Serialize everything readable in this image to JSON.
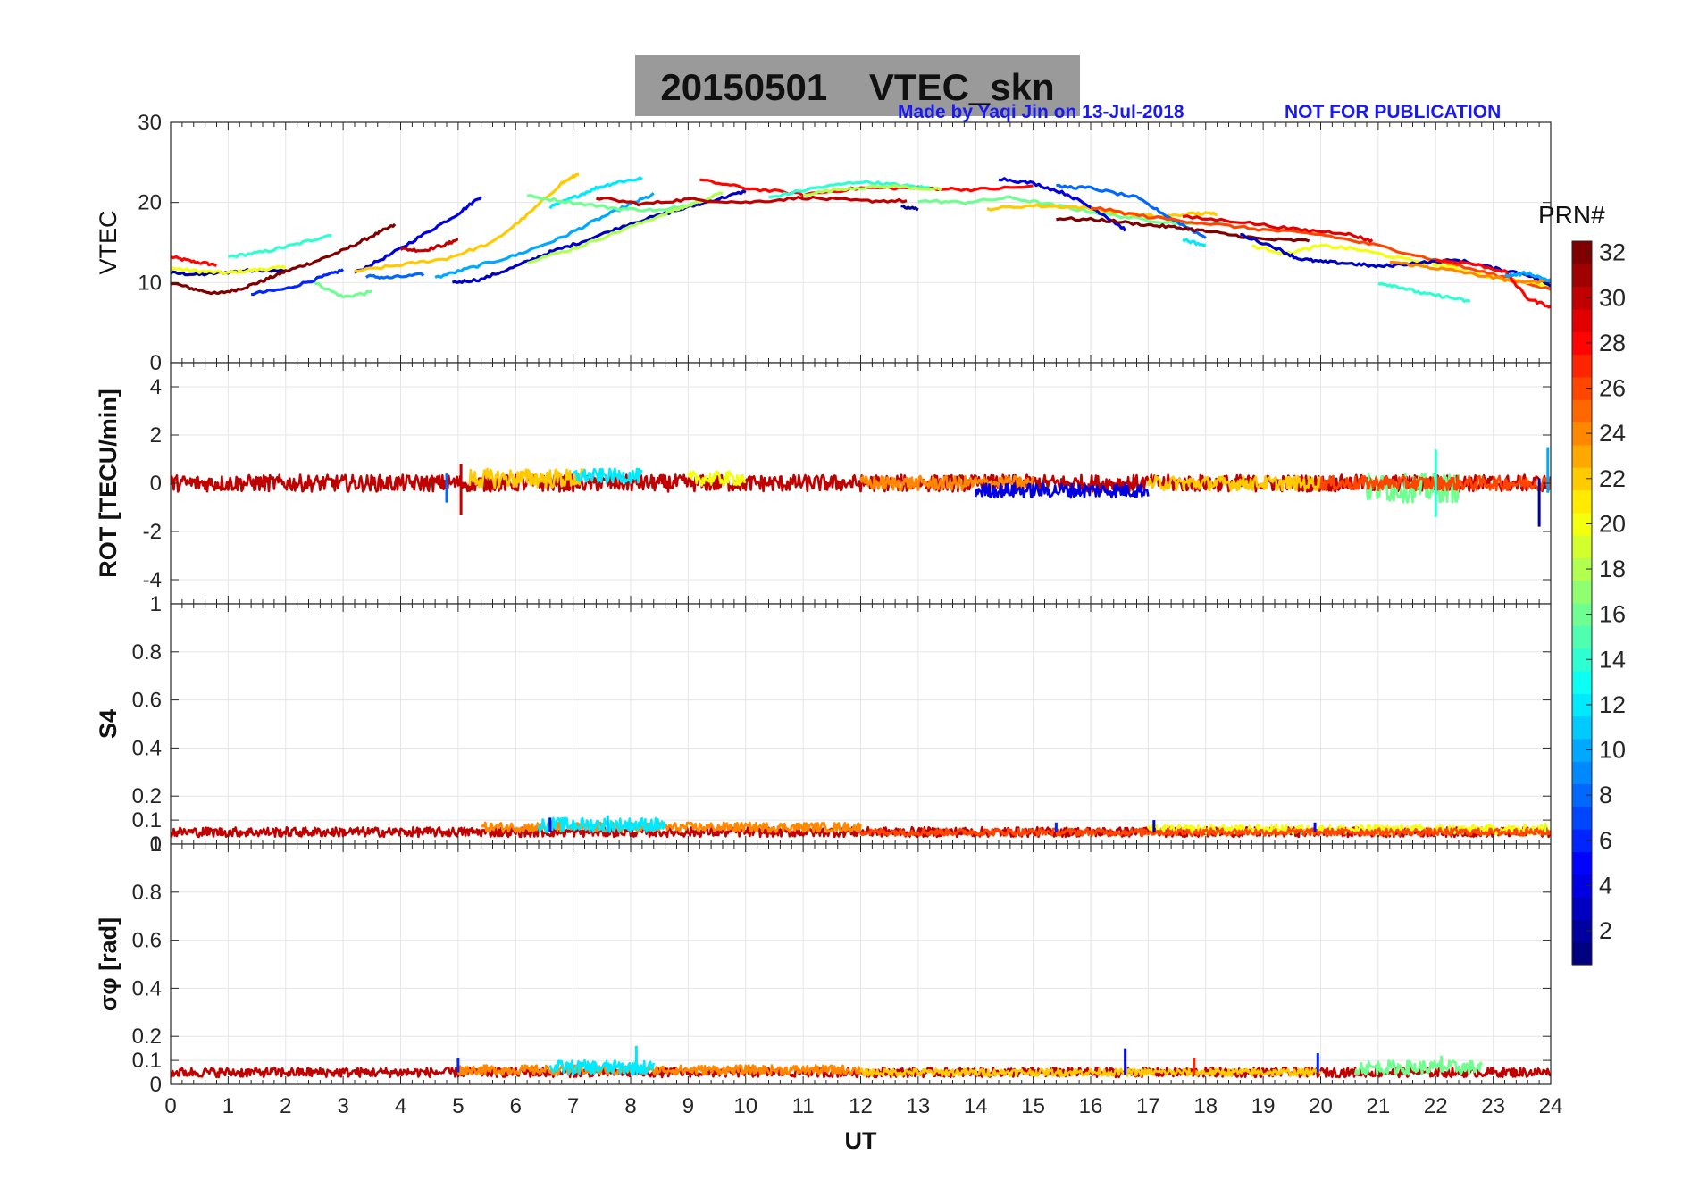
{
  "figure": {
    "title": "20150501    VTEC_skn",
    "credit_left": "Made by Yaqi Jin on 13-Jul-2018",
    "credit_right": "NOT FOR PUBLICATION",
    "xlabel": "UT"
  },
  "colorbar": {
    "label": "PRN#",
    "ticks": [
      2,
      4,
      6,
      8,
      10,
      12,
      14,
      16,
      18,
      20,
      22,
      24,
      26,
      28,
      30,
      32
    ],
    "range": [
      1,
      32
    ],
    "colormap": "jet"
  },
  "chart_data": [
    {
      "type": "line",
      "panel": "vtec",
      "ylabel": "VTEC",
      "xlim": [
        0,
        24
      ],
      "ylim": [
        0,
        30
      ],
      "yticks": [
        0,
        10,
        20,
        30
      ],
      "grid": true,
      "series": [
        {
          "prn": 28,
          "x": [
            0,
            0.4,
            0.8
          ],
          "y": [
            13.2,
            12.6,
            12.2
          ]
        },
        {
          "prn": 2,
          "x": [
            0,
            0.5,
            1.0,
            1.5,
            2.0
          ],
          "y": [
            11.2,
            11.0,
            11.3,
            11.6,
            11.4
          ]
        },
        {
          "prn": 20,
          "x": [
            0,
            0.5,
            1.0,
            1.5,
            2.0
          ],
          "y": [
            11.8,
            11.4,
            11.2,
            11.6,
            11.9
          ]
        },
        {
          "prn": 32,
          "x": [
            0,
            0.4,
            0.8,
            1.2,
            1.6,
            2.0,
            2.5,
            3.0,
            3.5,
            3.9
          ],
          "y": [
            10.0,
            9.2,
            8.6,
            9.2,
            10.2,
            11.4,
            12.6,
            14.0,
            15.8,
            17.2
          ]
        },
        {
          "prn": 14,
          "x": [
            1.0,
            1.6,
            2.2,
            2.8
          ],
          "y": [
            13.2,
            13.8,
            14.8,
            16.0
          ]
        },
        {
          "prn": 16,
          "x": [
            2.5,
            3.0,
            3.5
          ],
          "y": [
            10.0,
            8.2,
            8.8
          ]
        },
        {
          "prn": 6,
          "x": [
            1.4,
            2.0,
            2.6,
            3.0
          ],
          "y": [
            8.6,
            9.2,
            10.6,
            11.6
          ]
        },
        {
          "prn": 4,
          "x": [
            3.2,
            3.8,
            4.4,
            5.0,
            5.4
          ],
          "y": [
            11.2,
            13.4,
            16.0,
            18.6,
            20.8
          ]
        },
        {
          "prn": 30,
          "x": [
            4.0,
            4.4,
            4.8,
            5.0
          ],
          "y": [
            14.2,
            14.0,
            14.8,
            15.4
          ]
        },
        {
          "prn": 8,
          "x": [
            3.4,
            3.8,
            4.4
          ],
          "y": [
            10.8,
            10.6,
            11.0
          ]
        },
        {
          "prn": 3,
          "x": [
            4.9,
            5.4,
            6.0,
            6.6,
            7.2,
            8.0,
            8.8,
            9.5,
            10.0
          ],
          "y": [
            10.0,
            10.4,
            12.0,
            13.8,
            15.2,
            17.4,
            19.0,
            20.4,
            21.4
          ]
        },
        {
          "prn": 10,
          "x": [
            4.6,
            5.2,
            6.0,
            6.8,
            7.4,
            8.0,
            8.4
          ],
          "y": [
            10.6,
            11.8,
            13.4,
            15.6,
            17.8,
            19.8,
            21.0
          ]
        },
        {
          "prn": 22,
          "x": [
            3.2,
            4.0,
            4.8,
            5.6,
            6.2,
            6.8,
            7.1
          ],
          "y": [
            11.4,
            12.2,
            13.0,
            15.0,
            18.4,
            22.4,
            23.6
          ]
        },
        {
          "prn": 12,
          "x": [
            6.6,
            7.0,
            7.4,
            7.8,
            8.2
          ],
          "y": [
            19.4,
            20.6,
            21.8,
            22.6,
            23.0
          ]
        },
        {
          "prn": 16,
          "x": [
            6.2,
            7.0,
            7.8,
            8.6,
            9.2
          ],
          "y": [
            20.8,
            20.0,
            19.2,
            19.0,
            20.2
          ]
        },
        {
          "prn": 18,
          "x": [
            6.2,
            7.0,
            7.8,
            8.6,
            9.0,
            9.6
          ],
          "y": [
            12.6,
            14.2,
            16.4,
            18.6,
            19.6,
            21.2
          ]
        },
        {
          "prn": 30,
          "x": [
            7.4,
            8.2,
            9.0,
            10.0,
            11.0,
            12.0,
            12.8
          ],
          "y": [
            20.6,
            19.8,
            20.4,
            20.0,
            20.6,
            20.2,
            20.2
          ]
        },
        {
          "prn": 28,
          "x": [
            9.2,
            10.0,
            11.0,
            12.0,
            13.0,
            14.0,
            15.0
          ],
          "y": [
            22.8,
            21.8,
            21.0,
            21.8,
            21.8,
            21.6,
            22.0
          ]
        },
        {
          "prn": 14,
          "x": [
            10.4,
            11.2,
            12.0,
            12.6,
            13.2
          ],
          "y": [
            20.6,
            21.8,
            22.6,
            22.2,
            21.8
          ]
        },
        {
          "prn": 18,
          "x": [
            11.0,
            11.8,
            12.6,
            13.4
          ],
          "y": [
            21.0,
            21.8,
            22.0,
            21.6
          ]
        },
        {
          "prn": 2,
          "x": [
            12.7,
            13.0
          ],
          "y": [
            19.4,
            19.2
          ]
        },
        {
          "prn": 16,
          "x": [
            13.0,
            13.8,
            14.6,
            15.4,
            16.2,
            17.0,
            17.8
          ],
          "y": [
            20.2,
            20.0,
            20.6,
            19.6,
            18.6,
            17.8,
            17.2
          ]
        },
        {
          "prn": 22,
          "x": [
            14.2,
            15.0,
            15.8,
            16.6,
            17.2,
            17.8,
            18.2
          ],
          "y": [
            19.2,
            19.6,
            19.4,
            18.6,
            18.2,
            18.6,
            18.6
          ]
        },
        {
          "prn": 4,
          "x": [
            14.4,
            15.0,
            15.6,
            16.2,
            16.6
          ],
          "y": [
            23.0,
            22.4,
            21.0,
            18.6,
            16.6
          ]
        },
        {
          "prn": 8,
          "x": [
            15.4,
            16.0,
            16.8,
            17.4,
            18.0
          ],
          "y": [
            22.0,
            21.8,
            20.6,
            18.0,
            15.6
          ]
        },
        {
          "prn": 32,
          "x": [
            15.4,
            16.2,
            17.0,
            17.6,
            18.2,
            19.0,
            19.8
          ],
          "y": [
            18.0,
            17.8,
            17.2,
            16.8,
            16.2,
            15.4,
            15.2
          ]
        },
        {
          "prn": 26,
          "x": [
            16.0,
            17.0,
            18.0,
            19.0,
            20.0,
            21.0,
            22.0,
            23.0,
            24.0
          ],
          "y": [
            19.4,
            18.2,
            17.4,
            16.6,
            16.0,
            14.6,
            12.8,
            11.0,
            9.2
          ]
        },
        {
          "prn": 29,
          "x": [
            17.6,
            18.6,
            19.6,
            20.4,
            20.9
          ],
          "y": [
            18.2,
            17.6,
            16.6,
            16.2,
            15.2
          ]
        },
        {
          "prn": 12,
          "x": [
            17.6,
            18.0
          ],
          "y": [
            15.4,
            14.6
          ]
        },
        {
          "prn": 20,
          "x": [
            18.8,
            19.4,
            20.0,
            20.6,
            21.4,
            22.2,
            23.0,
            24.0
          ],
          "y": [
            14.6,
            13.6,
            14.6,
            14.2,
            13.0,
            12.0,
            10.6,
            9.6
          ]
        },
        {
          "prn": 3,
          "x": [
            18.6,
            19.2,
            19.6,
            20.0,
            20.5,
            21.0,
            21.6,
            22.4,
            23.0,
            23.6,
            24.0
          ],
          "y": [
            16.0,
            14.4,
            13.0,
            12.6,
            12.4,
            12.0,
            12.4,
            12.8,
            11.8,
            11.0,
            9.6
          ]
        },
        {
          "prn": 14,
          "x": [
            21.0,
            21.4,
            21.8,
            22.2,
            22.6
          ],
          "y": [
            10.0,
            9.4,
            8.6,
            8.2,
            7.6
          ]
        },
        {
          "prn": 24,
          "x": [
            21.2,
            21.8,
            22.4,
            23.0,
            23.6,
            24.0
          ],
          "y": [
            12.6,
            12.0,
            11.4,
            10.6,
            10.0,
            10.4
          ]
        },
        {
          "prn": 28,
          "x": [
            22.0,
            22.6,
            23.2,
            23.6,
            24.0
          ],
          "y": [
            12.8,
            12.4,
            11.4,
            8.0,
            7.0
          ]
        },
        {
          "prn": 10,
          "x": [
            23.2,
            23.6,
            24.0
          ],
          "y": [
            10.8,
            11.2,
            10.2
          ]
        }
      ]
    },
    {
      "type": "line",
      "panel": "rot",
      "ylabel": "ROT [TECU/min]",
      "xlim": [
        0,
        24
      ],
      "ylim": [
        -5,
        5
      ],
      "yticks": [
        -4,
        -2,
        0,
        2,
        4
      ],
      "grid": true,
      "bands": [
        {
          "prn": 30,
          "x": [
            0,
            24
          ],
          "level": 0.0,
          "spread": 0.35
        },
        {
          "prn": 22,
          "x": [
            5.2,
            7.2
          ],
          "level": 0.2,
          "spread": 0.4
        },
        {
          "prn": 12,
          "x": [
            7.0,
            8.2
          ],
          "level": 0.3,
          "spread": 0.3
        },
        {
          "prn": 20,
          "x": [
            9.0,
            10.0
          ],
          "level": 0.2,
          "spread": 0.3
        },
        {
          "prn": 24,
          "x": [
            12.0,
            15.0
          ],
          "level": 0.0,
          "spread": 0.3
        },
        {
          "prn": 4,
          "x": [
            14.0,
            17.0
          ],
          "level": -0.3,
          "spread": 0.3
        },
        {
          "prn": 16,
          "x": [
            20.8,
            22.4
          ],
          "level": -0.2,
          "spread": 0.6
        },
        {
          "prn": 22,
          "x": [
            17.0,
            20.0
          ],
          "level": 0.0,
          "spread": 0.3
        },
        {
          "prn": 26,
          "x": [
            20.0,
            24.0
          ],
          "level": 0.0,
          "spread": 0.3
        }
      ],
      "spikes": [
        {
          "prn": 30,
          "x": 5.05,
          "ymin": -1.3,
          "ymax": 0.8
        },
        {
          "prn": 8,
          "x": 4.8,
          "ymin": -0.8,
          "ymax": 0.4
        },
        {
          "prn": 14,
          "x": 22.0,
          "ymin": -1.4,
          "ymax": 1.4
        },
        {
          "prn": 2,
          "x": 23.8,
          "ymin": -1.8,
          "ymax": 0.2
        },
        {
          "prn": 10,
          "x": 23.95,
          "ymin": -0.4,
          "ymax": 1.5
        }
      ]
    },
    {
      "type": "line",
      "panel": "s4",
      "ylabel": "S4",
      "xlim": [
        0,
        24
      ],
      "ylim": [
        0,
        1
      ],
      "yticks": [
        0,
        0.1,
        0.2,
        0.4,
        0.6,
        0.8,
        1
      ],
      "grid": true,
      "bands": [
        {
          "prn": 30,
          "x": [
            0,
            24
          ],
          "level": 0.05,
          "spread": 0.02
        },
        {
          "prn": 24,
          "x": [
            5.4,
            12.0
          ],
          "level": 0.07,
          "spread": 0.02
        },
        {
          "prn": 12,
          "x": [
            6.4,
            8.6
          ],
          "level": 0.08,
          "spread": 0.03
        },
        {
          "prn": 20,
          "x": [
            17.0,
            24.0
          ],
          "level": 0.06,
          "spread": 0.02
        },
        {
          "prn": 26,
          "x": [
            12.0,
            24.0
          ],
          "level": 0.05,
          "spread": 0.015
        }
      ],
      "spikes": [
        {
          "prn": 11,
          "x": 7.6,
          "ymin": 0.05,
          "ymax": 0.12
        },
        {
          "prn": 4,
          "x": 6.6,
          "ymin": 0.05,
          "ymax": 0.11
        },
        {
          "prn": 3,
          "x": 17.1,
          "ymin": 0.05,
          "ymax": 0.1
        },
        {
          "prn": 6,
          "x": 15.4,
          "ymin": 0.05,
          "ymax": 0.09
        },
        {
          "prn": 5,
          "x": 19.9,
          "ymin": 0.05,
          "ymax": 0.09
        },
        {
          "prn": 19,
          "x": 23.9,
          "ymin": 0.05,
          "ymax": 0.09
        }
      ]
    },
    {
      "type": "line",
      "panel": "sigma_phi",
      "ylabel": "σφ [rad]",
      "xlabel": "UT",
      "xlim": [
        0,
        24
      ],
      "xticks": [
        0,
        1,
        2,
        3,
        4,
        5,
        6,
        7,
        8,
        9,
        10,
        11,
        12,
        13,
        14,
        15,
        16,
        17,
        18,
        19,
        20,
        21,
        22,
        23,
        24
      ],
      "ylim": [
        0,
        1
      ],
      "yticks": [
        0,
        0.1,
        0.2,
        0.4,
        0.6,
        0.8,
        1
      ],
      "grid": true,
      "bands": [
        {
          "prn": 30,
          "x": [
            0,
            24
          ],
          "level": 0.05,
          "spread": 0.02
        },
        {
          "prn": 24,
          "x": [
            5.0,
            12.0
          ],
          "level": 0.06,
          "spread": 0.02
        },
        {
          "prn": 12,
          "x": [
            6.6,
            8.4
          ],
          "level": 0.07,
          "spread": 0.03
        },
        {
          "prn": 22,
          "x": [
            12.0,
            20.0
          ],
          "level": 0.05,
          "spread": 0.015
        },
        {
          "prn": 16,
          "x": [
            20.6,
            22.8
          ],
          "level": 0.07,
          "spread": 0.03
        }
      ],
      "spikes": [
        {
          "prn": 12,
          "x": 8.1,
          "ymin": 0.06,
          "ymax": 0.16
        },
        {
          "prn": 5,
          "x": 16.6,
          "ymin": 0.04,
          "ymax": 0.15
        },
        {
          "prn": 6,
          "x": 19.95,
          "ymin": 0.05,
          "ymax": 0.13
        },
        {
          "prn": 16,
          "x": 22.1,
          "ymin": 0.05,
          "ymax": 0.12
        },
        {
          "prn": 27,
          "x": 17.8,
          "ymin": 0.04,
          "ymax": 0.11
        },
        {
          "prn": 6,
          "x": 5.0,
          "ymin": 0.05,
          "ymax": 0.11
        }
      ]
    }
  ]
}
